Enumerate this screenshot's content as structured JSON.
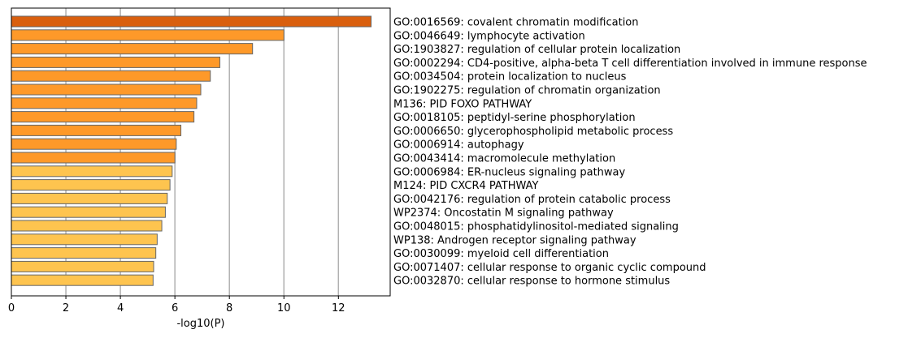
{
  "chart_data": {
    "type": "bar",
    "orientation": "horizontal",
    "xlabel": "-log10(P)",
    "xlim": [
      0,
      13.9
    ],
    "xticks": [
      0,
      2,
      4,
      6,
      8,
      10,
      12
    ],
    "grid": "vertical",
    "categories": [
      "GO:0016569: covalent chromatin modification",
      "GO:0046649: lymphocyte activation",
      "GO:1903827: regulation of cellular protein localization",
      "GO:0002294: CD4-positive, alpha-beta T cell differentiation involved in immune response",
      "GO:0034504: protein localization to nucleus",
      "GO:1902275: regulation of chromatin organization",
      "M136: PID FOXO PATHWAY",
      "GO:0018105: peptidyl-serine phosphorylation",
      "GO:0006650: glycerophospholipid metabolic process",
      "GO:0006914: autophagy",
      "GO:0043414: macromolecule methylation",
      "GO:0006984: ER-nucleus signaling pathway",
      "M124: PID CXCR4 PATHWAY",
      "GO:0042176: regulation of protein catabolic process",
      "WP2374: Oncostatin M signaling pathway",
      "GO:0048015: phosphatidylinositol-mediated signaling",
      "WP138: Androgen receptor signaling pathway",
      "GO:0030099: myeloid cell differentiation",
      "GO:0071407: cellular response to organic cyclic compound",
      "GO:0032870: cellular response to hormone stimulus"
    ],
    "values": [
      13.2,
      10.0,
      8.85,
      7.65,
      7.3,
      6.95,
      6.8,
      6.7,
      6.22,
      6.05,
      6.0,
      5.9,
      5.82,
      5.72,
      5.65,
      5.52,
      5.35,
      5.3,
      5.22,
      5.2
    ],
    "colors": [
      "#D95F0E",
      "#FE9929",
      "#FE9929",
      "#FE9929",
      "#FE9929",
      "#FE9929",
      "#FE9929",
      "#FE9929",
      "#FE9929",
      "#FE9929",
      "#FE9929",
      "#FEC44F",
      "#FEC44F",
      "#FEC44F",
      "#FEC44F",
      "#FEC44F",
      "#FEC44F",
      "#FEC44F",
      "#FEC44F",
      "#FEC44F"
    ],
    "bar_edge_color": "#666666"
  }
}
